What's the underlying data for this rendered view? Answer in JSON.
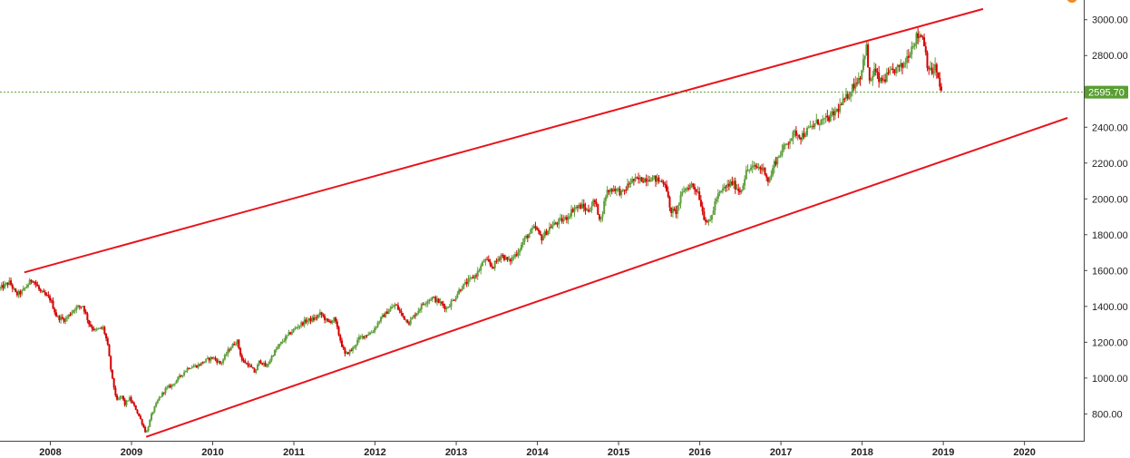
{
  "chart_data": {
    "type": "candlestick",
    "title": "",
    "xlabel": "",
    "ylabel": "",
    "x_range": [
      2007.38,
      2020.73
    ],
    "ylim": [
      650,
      3110
    ],
    "x_ticks": [
      {
        "value": 2008,
        "label": "2008"
      },
      {
        "value": 2009,
        "label": "2009"
      },
      {
        "value": 2010,
        "label": "2010"
      },
      {
        "value": 2011,
        "label": "2011"
      },
      {
        "value": 2012,
        "label": "2012"
      },
      {
        "value": 2013,
        "label": "2013"
      },
      {
        "value": 2014,
        "label": "2014"
      },
      {
        "value": 2015,
        "label": "2015"
      },
      {
        "value": 2016,
        "label": "2016"
      },
      {
        "value": 2017,
        "label": "2017"
      },
      {
        "value": 2018,
        "label": "2018"
      },
      {
        "value": 2019,
        "label": "2019"
      },
      {
        "value": 2020,
        "label": "2020"
      }
    ],
    "y_ticks": [
      {
        "value": 800,
        "label": "800.00"
      },
      {
        "value": 1000,
        "label": "1000.00"
      },
      {
        "value": 1200,
        "label": "1200.00"
      },
      {
        "value": 1400,
        "label": "1400.00"
      },
      {
        "value": 1600,
        "label": "1600.00"
      },
      {
        "value": 1800,
        "label": "1800.00"
      },
      {
        "value": 2000,
        "label": "2000.00"
      },
      {
        "value": 2200,
        "label": "2200.00"
      },
      {
        "value": 2400,
        "label": "2400.00"
      },
      {
        "value": 2600,
        "label": "2600.00"
      },
      {
        "value": 2800,
        "label": "2800.00"
      },
      {
        "value": 3000,
        "label": "3000.00"
      }
    ],
    "grid": false,
    "colors": {
      "up": "#5e9e3c",
      "down": "#d60000",
      "trendline": "#e8141c",
      "last_price": "#5a9e32",
      "axis": "#444444"
    },
    "last_price": {
      "value": 2595.7,
      "label": "2595.70"
    },
    "trendlines": [
      {
        "name": "",
        "points": [
          [
            2007.68,
            1590
          ],
          [
            2019.49,
            3060
          ]
        ]
      },
      {
        "name": "",
        "points": [
          [
            2009.18,
            672
          ],
          [
            2020.53,
            2452
          ]
        ]
      }
    ],
    "price_path": [
      [
        2007.38,
        1500
      ],
      [
        2007.5,
        1535
      ],
      [
        2007.58,
        1465
      ],
      [
        2007.65,
        1480
      ],
      [
        2007.78,
        1555
      ],
      [
        2007.88,
        1480
      ],
      [
        2008.0,
        1440
      ],
      [
        2008.08,
        1340
      ],
      [
        2008.18,
        1325
      ],
      [
        2008.3,
        1390
      ],
      [
        2008.4,
        1405
      ],
      [
        2008.48,
        1300
      ],
      [
        2008.55,
        1265
      ],
      [
        2008.65,
        1280
      ],
      [
        2008.7,
        1200
      ],
      [
        2008.76,
        1000
      ],
      [
        2008.82,
        870
      ],
      [
        2008.88,
        900
      ],
      [
        2008.92,
        850
      ],
      [
        2008.97,
        890
      ],
      [
        2009.05,
        830
      ],
      [
        2009.12,
        760
      ],
      [
        2009.18,
        690
      ],
      [
        2009.25,
        800
      ],
      [
        2009.33,
        880
      ],
      [
        2009.42,
        940
      ],
      [
        2009.5,
        960
      ],
      [
        2009.6,
        1010
      ],
      [
        2009.7,
        1060
      ],
      [
        2009.82,
        1070
      ],
      [
        2009.92,
        1100
      ],
      [
        2010.0,
        1115
      ],
      [
        2010.1,
        1080
      ],
      [
        2010.2,
        1160
      ],
      [
        2010.3,
        1210
      ],
      [
        2010.36,
        1100
      ],
      [
        2010.45,
        1070
      ],
      [
        2010.52,
        1030
      ],
      [
        2010.58,
        1100
      ],
      [
        2010.66,
        1060
      ],
      [
        2010.75,
        1140
      ],
      [
        2010.85,
        1200
      ],
      [
        2010.95,
        1250
      ],
      [
        2011.05,
        1290
      ],
      [
        2011.15,
        1320
      ],
      [
        2011.25,
        1330
      ],
      [
        2011.33,
        1360
      ],
      [
        2011.42,
        1310
      ],
      [
        2011.5,
        1330
      ],
      [
        2011.58,
        1200
      ],
      [
        2011.63,
        1130
      ],
      [
        2011.72,
        1160
      ],
      [
        2011.8,
        1220
      ],
      [
        2011.88,
        1240
      ],
      [
        2011.97,
        1260
      ],
      [
        2012.05,
        1320
      ],
      [
        2012.15,
        1370
      ],
      [
        2012.25,
        1410
      ],
      [
        2012.35,
        1340
      ],
      [
        2012.42,
        1310
      ],
      [
        2012.5,
        1360
      ],
      [
        2012.6,
        1420
      ],
      [
        2012.7,
        1450
      ],
      [
        2012.8,
        1420
      ],
      [
        2012.88,
        1390
      ],
      [
        2012.97,
        1440
      ],
      [
        2013.05,
        1500
      ],
      [
        2013.15,
        1540
      ],
      [
        2013.25,
        1580
      ],
      [
        2013.35,
        1660
      ],
      [
        2013.45,
        1620
      ],
      [
        2013.55,
        1690
      ],
      [
        2013.65,
        1650
      ],
      [
        2013.75,
        1700
      ],
      [
        2013.85,
        1780
      ],
      [
        2013.97,
        1840
      ],
      [
        2014.05,
        1780
      ],
      [
        2014.15,
        1840
      ],
      [
        2014.25,
        1870
      ],
      [
        2014.35,
        1890
      ],
      [
        2014.45,
        1950
      ],
      [
        2014.55,
        1960
      ],
      [
        2014.62,
        1930
      ],
      [
        2014.7,
        1990
      ],
      [
        2014.78,
        1880
      ],
      [
        2014.85,
        2040
      ],
      [
        2014.95,
        2060
      ],
      [
        2015.05,
        2030
      ],
      [
        2015.15,
        2100
      ],
      [
        2015.3,
        2110
      ],
      [
        2015.4,
        2120
      ],
      [
        2015.5,
        2100
      ],
      [
        2015.58,
        2090
      ],
      [
        2015.63,
        1940
      ],
      [
        2015.7,
        1920
      ],
      [
        2015.8,
        2050
      ],
      [
        2015.9,
        2080
      ],
      [
        2015.98,
        2040
      ],
      [
        2016.05,
        1900
      ],
      [
        2016.12,
        1860
      ],
      [
        2016.2,
        2000
      ],
      [
        2016.3,
        2060
      ],
      [
        2016.4,
        2090
      ],
      [
        2016.5,
        2040
      ],
      [
        2016.58,
        2160
      ],
      [
        2016.7,
        2180
      ],
      [
        2016.8,
        2160
      ],
      [
        2016.85,
        2090
      ],
      [
        2016.92,
        2200
      ],
      [
        2017.0,
        2260
      ],
      [
        2017.1,
        2330
      ],
      [
        2017.18,
        2370
      ],
      [
        2017.25,
        2350
      ],
      [
        2017.35,
        2390
      ],
      [
        2017.45,
        2430
      ],
      [
        2017.55,
        2440
      ],
      [
        2017.62,
        2460
      ],
      [
        2017.7,
        2500
      ],
      [
        2017.8,
        2560
      ],
      [
        2017.9,
        2640
      ],
      [
        2017.98,
        2690
      ],
      [
        2018.05,
        2860
      ],
      [
        2018.09,
        2640
      ],
      [
        2018.15,
        2720
      ],
      [
        2018.22,
        2650
      ],
      [
        2018.3,
        2680
      ],
      [
        2018.4,
        2720
      ],
      [
        2018.5,
        2740
      ],
      [
        2018.58,
        2820
      ],
      [
        2018.66,
        2900
      ],
      [
        2018.72,
        2920
      ],
      [
        2018.76,
        2890
      ],
      [
        2018.8,
        2760
      ],
      [
        2018.85,
        2700
      ],
      [
        2018.9,
        2740
      ],
      [
        2018.95,
        2630
      ],
      [
        2018.99,
        2596
      ]
    ]
  }
}
